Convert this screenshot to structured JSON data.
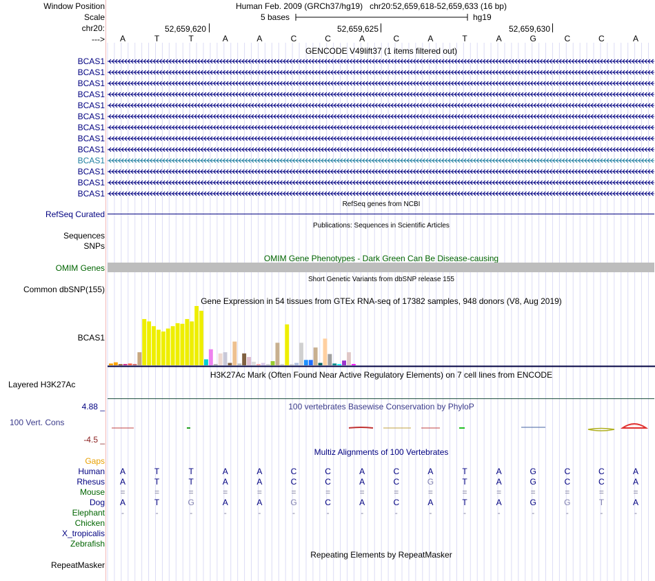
{
  "header": {
    "window_position_label": "Window Position",
    "scale_label": "Scale",
    "chrom_label": "chr20:",
    "arrow_label": "--->",
    "assembly": "Human Feb. 2009 (GRCh37/hg19)",
    "position": "chr20:52,659,618-52,659,633 (16 bp)",
    "scale_text": "5 bases",
    "db": "hg19",
    "ruler_ticks": [
      "52,659,620",
      "52,659,625",
      "52,659,630"
    ]
  },
  "sequence": [
    "A",
    "T",
    "T",
    "A",
    "A",
    "C",
    "C",
    "A",
    "C",
    "A",
    "T",
    "A",
    "G",
    "C",
    "C",
    "A"
  ],
  "gencode": {
    "title": "GENCODE V49lift37 (1 items filtered out)",
    "genes": [
      {
        "name": "BCAS1",
        "highlight": false
      },
      {
        "name": "BCAS1",
        "highlight": false
      },
      {
        "name": "BCAS1",
        "highlight": false
      },
      {
        "name": "BCAS1",
        "highlight": false
      },
      {
        "name": "BCAS1",
        "highlight": false
      },
      {
        "name": "BCAS1",
        "highlight": false
      },
      {
        "name": "BCAS1",
        "highlight": false
      },
      {
        "name": "BCAS1",
        "highlight": false
      },
      {
        "name": "BCAS1",
        "highlight": false
      },
      {
        "name": "BCAS1",
        "highlight": true
      },
      {
        "name": "BCAS1",
        "highlight": false
      },
      {
        "name": "BCAS1",
        "highlight": false
      },
      {
        "name": "BCAS1",
        "highlight": false
      }
    ]
  },
  "refseq": {
    "title": "RefSeq genes from NCBI",
    "label": "RefSeq Curated"
  },
  "publications": {
    "title": "Publications: Sequences in Scientific Articles",
    "labels": [
      "Sequences",
      "SNPs"
    ]
  },
  "omim": {
    "title": "OMIM Gene Phenotypes - Dark Green Can Be Disease-causing",
    "label": "OMIM Genes"
  },
  "dbsnp": {
    "title": "Short Genetic Variants from dbSNP release 155",
    "label": "Common dbSNP(155)"
  },
  "gtex": {
    "title": "Gene Expression in 54 tissues from GTEx RNA-seq of 17382 samples, 948 donors (V8, Aug 2019)",
    "label": "BCAS1",
    "bars": [
      {
        "v": 0.03,
        "c": "#ffa500"
      },
      {
        "v": 0.05,
        "c": "#ffa500"
      },
      {
        "v": 0.01,
        "c": "#8b4513"
      },
      {
        "v": 0.02,
        "c": "#c71585"
      },
      {
        "v": 0.03,
        "c": "#ff6347"
      },
      {
        "v": 0.02,
        "c": "#cd5c5c"
      },
      {
        "v": 0.22,
        "c": "#c8a880"
      },
      {
        "v": 0.78,
        "c": "#eeee00"
      },
      {
        "v": 0.74,
        "c": "#eeee00"
      },
      {
        "v": 0.66,
        "c": "#eeee00"
      },
      {
        "v": 0.6,
        "c": "#eeee00"
      },
      {
        "v": 0.57,
        "c": "#eeee00"
      },
      {
        "v": 0.62,
        "c": "#eeee00"
      },
      {
        "v": 0.66,
        "c": "#eeee00"
      },
      {
        "v": 0.71,
        "c": "#eeee00"
      },
      {
        "v": 0.7,
        "c": "#eeee00"
      },
      {
        "v": 0.78,
        "c": "#eeee00"
      },
      {
        "v": 0.74,
        "c": "#eeee00"
      },
      {
        "v": 1.0,
        "c": "#eeee00"
      },
      {
        "v": 0.92,
        "c": "#eeee00"
      },
      {
        "v": 0.1,
        "c": "#00ced1"
      },
      {
        "v": 0.27,
        "c": "#ee82ee"
      },
      {
        "v": 0.02,
        "c": "#b0b0b0"
      },
      {
        "v": 0.2,
        "c": "#eed8d0"
      },
      {
        "v": 0.22,
        "c": "#c8c8d8"
      },
      {
        "v": 0.04,
        "c": "#806040"
      },
      {
        "v": 0.4,
        "c": "#eec090"
      },
      {
        "v": 0.03,
        "c": "#c0c0c0"
      },
      {
        "v": 0.2,
        "c": "#806040"
      },
      {
        "v": 0.14,
        "c": "#e0c0d0"
      },
      {
        "v": 0.06,
        "c": "#dddddd"
      },
      {
        "v": 0.02,
        "c": "#ffa0a0"
      },
      {
        "v": 0.04,
        "c": "#d8c8e8"
      },
      {
        "v": 0.02,
        "c": "#d0d0d0"
      },
      {
        "v": 0.07,
        "c": "#9acd32"
      },
      {
        "v": 0.38,
        "c": "#c8b090"
      },
      {
        "v": 0.02,
        "c": "#d0d0d0"
      },
      {
        "v": 0.69,
        "c": "#eeee00"
      },
      {
        "v": 0.02,
        "c": "#d0d0d0"
      },
      {
        "v": 0.04,
        "c": "#b0c0e0"
      },
      {
        "v": 0.38,
        "c": "#d0d0d0"
      },
      {
        "v": 0.09,
        "c": "#1e90ff"
      },
      {
        "v": 0.09,
        "c": "#1e6eff"
      },
      {
        "v": 0.3,
        "c": "#c8b090"
      },
      {
        "v": 0.04,
        "c": "#006060"
      },
      {
        "v": 0.45,
        "c": "#ffd0a0"
      },
      {
        "v": 0.19,
        "c": "#a0a0a0"
      },
      {
        "v": 0.03,
        "c": "#008b8b"
      },
      {
        "v": 0.02,
        "c": "#00ffff"
      },
      {
        "v": 0.08,
        "c": "#9932cc"
      },
      {
        "v": 0.22,
        "c": "#e0c8c8"
      },
      {
        "v": 0.02,
        "c": "#ff00ff"
      }
    ]
  },
  "h3k27ac": {
    "title": "H3K27Ac Mark (Often Found Near Active Regulatory Elements) on 7 cell lines from ENCODE",
    "label": "Layered H3K27Ac"
  },
  "conservation": {
    "title": "100 vertebrates Basewise Conservation by PhyloP",
    "label": "100 Vert. Cons",
    "max": "4.88 _",
    "min": "-4.5 _"
  },
  "multiz": {
    "title": "Multiz Alignments of 100 Vertebrates",
    "gaps_label": "Gaps",
    "species": [
      {
        "name": "Human",
        "color": "#000080",
        "row": [
          "A",
          "T",
          "T",
          "A",
          "A",
          "C",
          "C",
          "A",
          "C",
          "A",
          "T",
          "A",
          "G",
          "C",
          "C",
          "A"
        ]
      },
      {
        "name": "Rhesus",
        "color": "#000080",
        "row": [
          "A",
          "T",
          "T",
          "A",
          "A",
          "C",
          "C",
          "A",
          "C",
          "G",
          "T",
          "A",
          "G",
          "C",
          "C",
          "A"
        ]
      },
      {
        "name": "Mouse",
        "color": "#006400",
        "row": [
          "=",
          "=",
          "=",
          "=",
          "=",
          "=",
          "=",
          "=",
          "=",
          "=",
          "=",
          "=",
          "=",
          "=",
          "=",
          "="
        ]
      },
      {
        "name": "Dog",
        "color": "#000080",
        "row": [
          "A",
          "T",
          "G",
          "A",
          "A",
          "G",
          "C",
          "A",
          "C",
          "A",
          "T",
          "A",
          "G",
          "G",
          "T",
          "A"
        ]
      },
      {
        "name": "Elephant",
        "color": "#006400",
        "row": [
          "-",
          "-",
          "-",
          "-",
          "-",
          "-",
          "-",
          "-",
          "-",
          "-",
          "-",
          "-",
          "-",
          "-",
          "-",
          "-"
        ]
      },
      {
        "name": "Chicken",
        "color": "#006400",
        "row": []
      },
      {
        "name": "X_tropicalis",
        "color": "#000080",
        "row": []
      },
      {
        "name": "Zebrafish",
        "color": "#006400",
        "row": []
      }
    ]
  },
  "repeatmasker": {
    "title": "Repeating Elements by RepeatMasker",
    "label": "RepeatMasker"
  }
}
